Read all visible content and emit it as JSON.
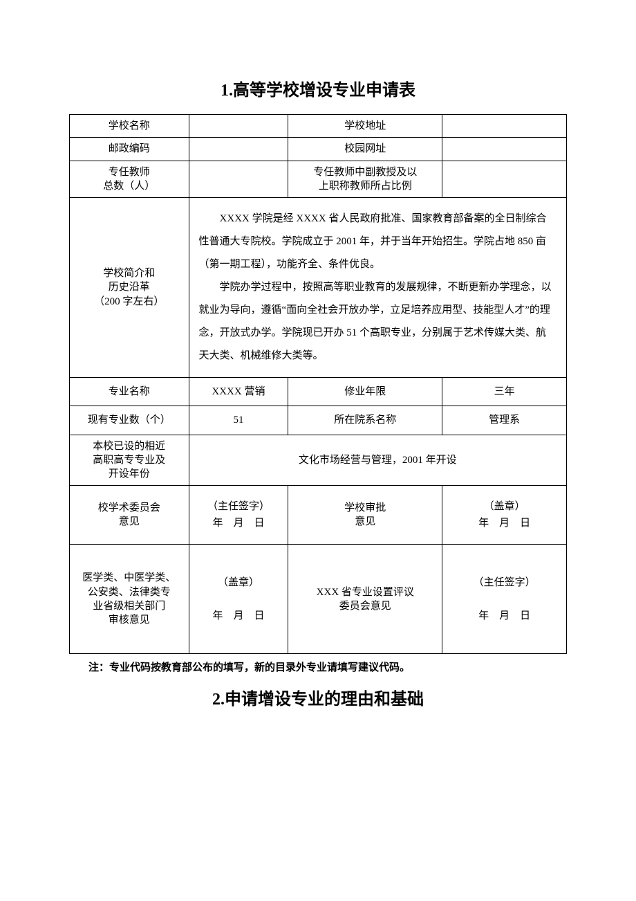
{
  "headings": {
    "title1": "1.高等学校增设专业申请表",
    "title2": "2.申请增设专业的理由和基础"
  },
  "labels": {
    "school_name": "学校名称",
    "school_address": "学校地址",
    "postal_code": "邮政编码",
    "campus_url": "校园网址",
    "teacher_count": "专任教师\n总数（人）",
    "teacher_ratio": "专任教师中副教授及以\n上职称教师所占比例",
    "school_intro": "学校简介和\n历史沿革\n（200 字左右）",
    "major_name": "专业名称",
    "study_years": "修业年限",
    "existing_majors": "现有专业数（个）",
    "dept_name": "所在院系名称",
    "similar_major": "本校已设的相近\n高职高专专业及\n开设年份",
    "committee_opinion": "校学术委员会\n意见",
    "school_approval": "学校审批\n意见",
    "provincial_review": "医学类、中医学类、\n公安类、法律类专\n业省级相关部门\n审核意见",
    "province_committee": "XXX 省专业设置评议\n委员会意见"
  },
  "values": {
    "school_name": "",
    "school_address": "",
    "postal_code": "",
    "campus_url": "",
    "teacher_count": "",
    "teacher_ratio": "",
    "intro_p1": "XXXX 学院是经 XXXX 省人民政府批准、国家教育部备案的全日制综合性普通大专院校。学院成立于 2001 年，并于当年开始招生。学院占地 850 亩（第一期工程），功能齐全、条件优良。",
    "intro_p2": "学院办学过程中，按照高等职业教育的发展规律，不断更新办学理念，以就业为导向，遵循“面向全社会开放办学，立足培养应用型、技能型人才”的理念，开放式办学。学院现已开办 51 个高职专业，分别属于艺术传媒大类、航天大类、机械维修大类等。",
    "major_name": "XXXX 营销",
    "study_years": "三年",
    "existing_majors": "51",
    "dept_name": "管理系",
    "similar_major": "文化市场经营与管理，2001 年开设",
    "sig_director": "（主任签字）\n年 月 日",
    "sig_seal": "（盖章）\n年 月 日",
    "sig_seal2": "（盖章）\n\n年 月 日",
    "sig_director2": "（主任签字）\n\n年 月 日"
  },
  "note": "注：专业代码按教育部公布的填写，新的目录外专业请填写建议代码。",
  "colors": {
    "border": "#000000",
    "background": "#ffffff",
    "text": "#000000"
  },
  "typography": {
    "title_fontsize": 24,
    "body_fontsize": 15,
    "font_family": "SimSun"
  }
}
